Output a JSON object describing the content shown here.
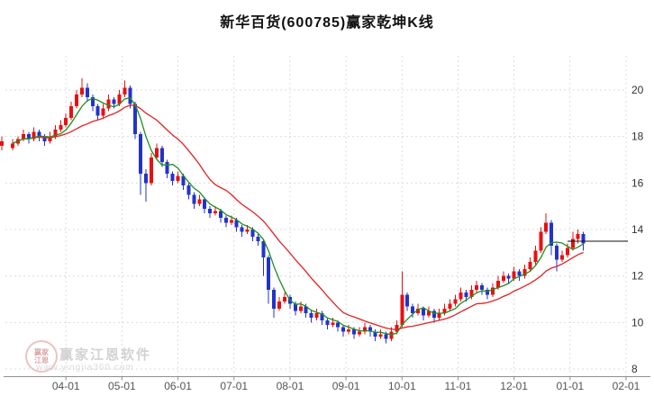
{
  "watermark": {
    "brand": "赢家江恩软件",
    "url": "www.yingjia360.com",
    "logo_text": "赢家\n江恩"
  },
  "chart_data": {
    "type": "candlestick",
    "title": "新华百货(600785)赢家乾坤K线",
    "xlabel": "",
    "ylabel": "",
    "ylim": [
      8,
      21.5
    ],
    "y_ticks": [
      8,
      10,
      12,
      14,
      16,
      18,
      20
    ],
    "grid": true,
    "legend": "none",
    "x_extent": 115,
    "x_ticks": [
      {
        "label": "04-01",
        "i": 10
      },
      {
        "label": "05-01",
        "i": 20.5
      },
      {
        "label": "06-01",
        "i": 31
      },
      {
        "label": "07-01",
        "i": 41.5
      },
      {
        "label": "08-01",
        "i": 52
      },
      {
        "label": "09-01",
        "i": 62.5
      },
      {
        "label": "10-01",
        "i": 73
      },
      {
        "label": "11-01",
        "i": 83.5
      },
      {
        "label": "12-01",
        "i": 94
      },
      {
        "label": "01-01",
        "i": 104.5
      },
      {
        "label": "02-01",
        "i": 115
      }
    ],
    "colors": {
      "up": "#e81010",
      "down": "#2233cc",
      "ma_fast": "#1f8f1f",
      "ma_slow": "#e32222",
      "level_line": "#111111"
    },
    "ma_windows": {
      "fast": 5,
      "slow": 15
    },
    "level_line": {
      "value": 13.5,
      "from_i": 104
    },
    "pre_candle": {
      "i": -2,
      "ohlc": [
        17.6,
        18.0,
        17.4,
        17.8
      ]
    },
    "candles": [
      [
        17.5,
        17.9,
        17.4,
        17.7
      ],
      [
        17.7,
        18.0,
        17.6,
        17.9
      ],
      [
        17.9,
        18.3,
        17.8,
        18.1
      ],
      [
        18.1,
        18.2,
        17.7,
        17.9
      ],
      [
        17.9,
        18.4,
        17.8,
        18.2
      ],
      [
        18.2,
        18.3,
        17.8,
        18.0
      ],
      [
        18.0,
        18.1,
        17.6,
        17.8
      ],
      [
        17.8,
        18.2,
        17.7,
        18.0
      ],
      [
        18.0,
        18.5,
        17.9,
        18.3
      ],
      [
        18.3,
        18.7,
        18.2,
        18.5
      ],
      [
        18.5,
        19.0,
        18.4,
        18.8
      ],
      [
        18.8,
        19.5,
        18.7,
        19.3
      ],
      [
        19.3,
        20.0,
        19.2,
        19.8
      ],
      [
        19.8,
        20.5,
        19.7,
        20.1
      ],
      [
        20.1,
        20.3,
        19.5,
        19.7
      ],
      [
        19.7,
        19.8,
        19.1,
        19.3
      ],
      [
        19.3,
        19.4,
        18.7,
        18.9
      ],
      [
        18.9,
        19.4,
        18.8,
        19.2
      ],
      [
        19.2,
        19.8,
        19.1,
        19.6
      ],
      [
        19.6,
        19.7,
        19.2,
        19.4
      ],
      [
        19.4,
        20.0,
        19.3,
        19.8
      ],
      [
        19.8,
        20.4,
        19.7,
        20.1
      ],
      [
        20.1,
        20.2,
        19.2,
        19.4
      ],
      [
        19.4,
        19.5,
        17.9,
        18.1
      ],
      [
        18.1,
        18.2,
        15.5,
        16.4
      ],
      [
        16.4,
        16.6,
        15.2,
        16.0
      ],
      [
        16.0,
        17.3,
        15.9,
        17.1
      ],
      [
        17.1,
        17.7,
        17.0,
        17.5
      ],
      [
        17.5,
        17.6,
        16.7,
        16.9
      ],
      [
        16.9,
        17.0,
        16.2,
        16.4
      ],
      [
        16.4,
        16.5,
        15.9,
        16.1
      ],
      [
        16.1,
        16.5,
        16.0,
        16.3
      ],
      [
        16.3,
        16.4,
        15.7,
        15.9
      ],
      [
        15.9,
        16.0,
        15.3,
        15.5
      ],
      [
        15.5,
        15.6,
        14.9,
        15.1
      ],
      [
        15.1,
        15.5,
        15.0,
        15.3
      ],
      [
        15.3,
        15.4,
        14.7,
        14.9
      ],
      [
        14.9,
        15.0,
        14.5,
        14.7
      ],
      [
        14.7,
        15.0,
        14.6,
        14.8
      ],
      [
        14.8,
        14.9,
        14.3,
        14.5
      ],
      [
        14.5,
        14.6,
        14.1,
        14.3
      ],
      [
        14.3,
        14.6,
        14.2,
        14.4
      ],
      [
        14.4,
        14.5,
        13.9,
        14.1
      ],
      [
        14.1,
        14.2,
        13.7,
        13.9
      ],
      [
        13.9,
        14.2,
        13.8,
        14.0
      ],
      [
        14.0,
        14.1,
        13.5,
        13.7
      ],
      [
        13.7,
        13.8,
        13.3,
        13.5
      ],
      [
        13.5,
        13.6,
        12.0,
        12.8
      ],
      [
        12.8,
        12.9,
        10.8,
        11.4
      ],
      [
        11.4,
        11.5,
        10.2,
        10.6
      ],
      [
        10.6,
        11.1,
        10.5,
        10.9
      ],
      [
        10.9,
        11.3,
        10.8,
        11.1
      ],
      [
        11.1,
        11.2,
        10.6,
        10.8
      ],
      [
        10.8,
        10.9,
        10.3,
        10.5
      ],
      [
        10.5,
        10.9,
        10.4,
        10.7
      ],
      [
        10.7,
        10.8,
        10.2,
        10.4
      ],
      [
        10.4,
        10.5,
        10.0,
        10.2
      ],
      [
        10.2,
        10.6,
        10.1,
        10.4
      ],
      [
        10.4,
        10.5,
        9.9,
        10.1
      ],
      [
        10.1,
        10.2,
        9.7,
        9.9
      ],
      [
        9.9,
        10.2,
        9.8,
        10.0
      ],
      [
        10.0,
        10.1,
        9.6,
        9.8
      ],
      [
        9.8,
        9.9,
        9.4,
        9.6
      ],
      [
        9.6,
        9.9,
        9.5,
        9.7
      ],
      [
        9.7,
        9.8,
        9.3,
        9.5
      ],
      [
        9.5,
        9.8,
        9.4,
        9.6
      ],
      [
        9.6,
        10.0,
        9.5,
        9.8
      ],
      [
        9.8,
        9.9,
        9.4,
        9.6
      ],
      [
        9.6,
        9.7,
        9.2,
        9.4
      ],
      [
        9.4,
        9.7,
        9.3,
        9.5
      ],
      [
        9.5,
        9.6,
        9.1,
        9.3
      ],
      [
        9.3,
        9.8,
        9.2,
        9.6
      ],
      [
        9.6,
        10.1,
        9.5,
        9.9
      ],
      [
        9.9,
        12.2,
        9.8,
        11.2
      ],
      [
        11.2,
        11.3,
        10.5,
        10.7
      ],
      [
        10.7,
        10.8,
        10.2,
        10.4
      ],
      [
        10.4,
        10.8,
        10.3,
        10.6
      ],
      [
        10.6,
        10.7,
        10.1,
        10.3
      ],
      [
        10.3,
        10.7,
        10.2,
        10.5
      ],
      [
        10.5,
        10.6,
        10.0,
        10.2
      ],
      [
        10.2,
        10.6,
        10.1,
        10.4
      ],
      [
        10.4,
        10.8,
        10.3,
        10.6
      ],
      [
        10.6,
        11.0,
        10.5,
        10.8
      ],
      [
        10.8,
        11.2,
        10.7,
        11.0
      ],
      [
        11.0,
        11.5,
        10.9,
        11.3
      ],
      [
        11.3,
        11.4,
        10.9,
        11.1
      ],
      [
        11.1,
        11.6,
        11.0,
        11.4
      ],
      [
        11.4,
        11.8,
        11.3,
        11.6
      ],
      [
        11.6,
        11.7,
        11.2,
        11.4
      ],
      [
        11.4,
        11.5,
        11.0,
        11.2
      ],
      [
        11.2,
        11.7,
        11.1,
        11.5
      ],
      [
        11.5,
        12.0,
        11.4,
        11.8
      ],
      [
        11.8,
        12.2,
        11.7,
        12.0
      ],
      [
        12.0,
        12.1,
        11.7,
        11.9
      ],
      [
        11.9,
        12.4,
        11.8,
        12.2
      ],
      [
        12.2,
        12.3,
        11.8,
        12.0
      ],
      [
        12.0,
        12.5,
        11.9,
        12.3
      ],
      [
        12.3,
        12.8,
        12.2,
        12.6
      ],
      [
        12.6,
        13.3,
        12.5,
        13.1
      ],
      [
        13.1,
        14.1,
        13.0,
        13.9
      ],
      [
        13.9,
        14.7,
        13.8,
        14.3
      ],
      [
        14.3,
        14.4,
        12.9,
        13.3
      ],
      [
        13.3,
        13.4,
        12.2,
        12.7
      ],
      [
        12.7,
        13.1,
        12.6,
        12.9
      ],
      [
        12.9,
        13.4,
        12.8,
        13.2
      ],
      [
        13.2,
        13.9,
        13.1,
        13.6
      ],
      [
        13.6,
        14.0,
        13.4,
        13.8
      ],
      [
        13.8,
        13.9,
        13.1,
        13.4
      ]
    ]
  }
}
